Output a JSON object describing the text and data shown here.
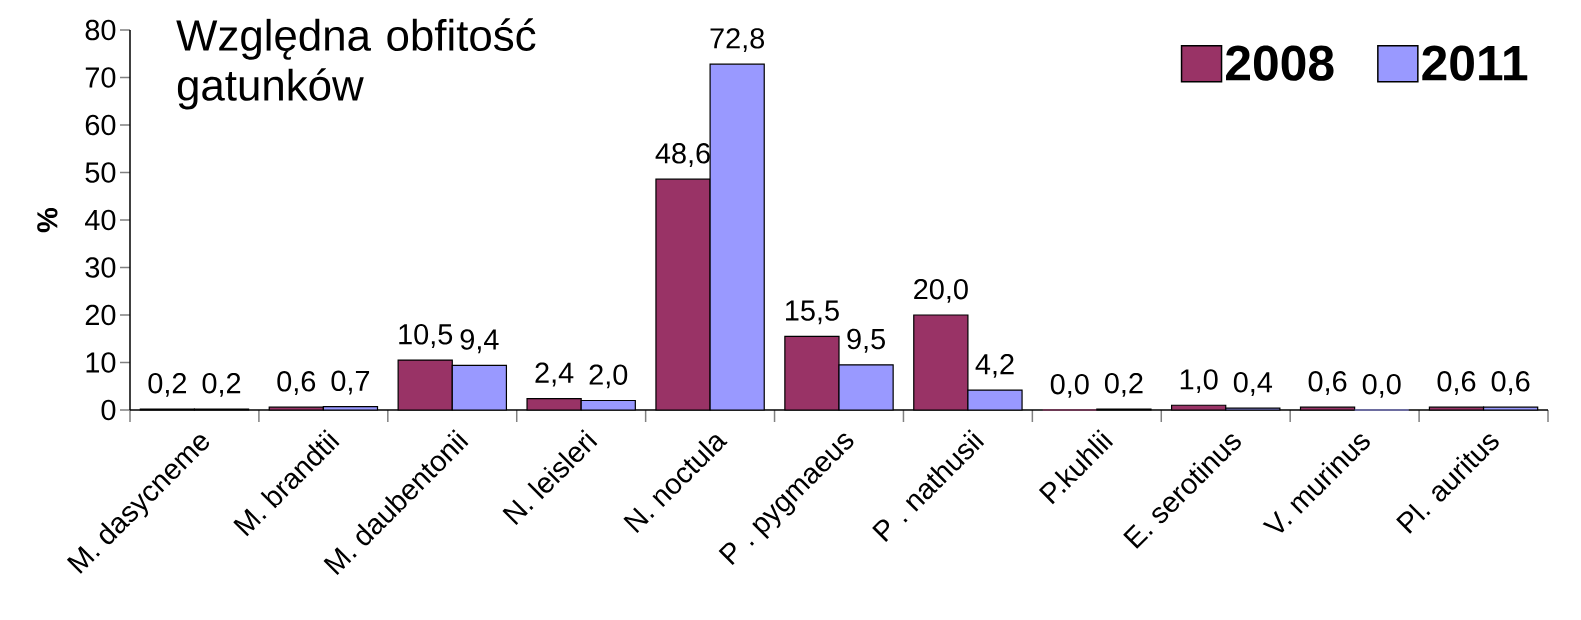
{
  "chart_data": {
    "type": "bar",
    "title": "Względna obfitość gatunków",
    "ylabel": "%",
    "categories": [
      "M. dasycneme",
      "M. brandtii",
      "M. daubentonii",
      "N. leisleri",
      "N. noctula",
      "P . pygmaeus",
      "P . nathusii",
      "P.kuhlii",
      "E. serotinus",
      "V. murinus",
      "Pl. auritus"
    ],
    "series": [
      {
        "name": "2008",
        "color": "#993366",
        "values": [
          0.2,
          0.6,
          10.5,
          2.4,
          48.6,
          15.5,
          20.0,
          0.0,
          1.0,
          0.6,
          0.6
        ],
        "value_labels": [
          "0,2",
          "0,6",
          "10,5",
          "2,4",
          "48,6",
          "15,5",
          "20,0",
          "0,0",
          "1,0",
          "0,6",
          "0,6"
        ]
      },
      {
        "name": "2011",
        "color": "#9999ff",
        "values": [
          0.2,
          0.7,
          9.4,
          2.0,
          72.8,
          9.5,
          4.2,
          0.2,
          0.4,
          0.0,
          0.6
        ],
        "value_labels": [
          "0,2",
          "0,7",
          "9,4",
          "2,0",
          "72,8",
          "9,5",
          "4,2",
          "0,2",
          "0,4",
          "0,0",
          "0,6"
        ]
      }
    ],
    "ylim": [
      0,
      80
    ],
    "yticks": [
      0,
      10,
      20,
      30,
      40,
      50,
      60,
      70,
      80
    ],
    "grid": false,
    "legend": "top right"
  }
}
